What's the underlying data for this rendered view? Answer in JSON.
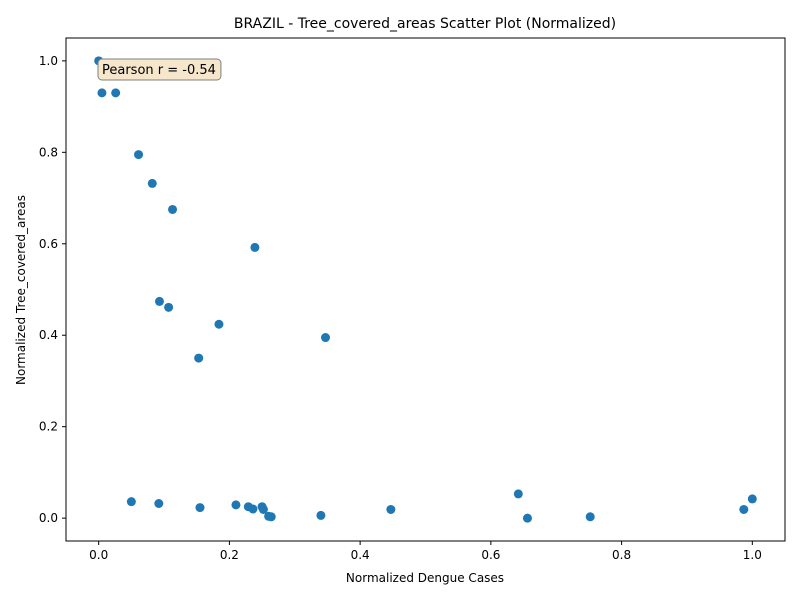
{
  "chart_data": {
    "type": "scatter",
    "title": "BRAZIL - Tree_covered_areas Scatter Plot (Normalized)",
    "xlabel": "Normalized Dengue Cases",
    "ylabel": "Normalized Tree_covered_areas",
    "xlim": [
      -0.05,
      1.05
    ],
    "ylim": [
      -0.05,
      1.05
    ],
    "x_ticks": [
      "0.0",
      "0.2",
      "0.4",
      "0.6",
      "0.8",
      "1.0"
    ],
    "y_ticks": [
      "0.0",
      "0.2",
      "0.4",
      "0.6",
      "0.8",
      "1.0"
    ],
    "grid": false,
    "marker_color": "#1f77b4",
    "annotation": "Pearson r = -0.54",
    "points": [
      {
        "x": 0.0,
        "y": 1.0
      },
      {
        "x": 0.005,
        "y": 0.93
      },
      {
        "x": 0.026,
        "y": 0.93
      },
      {
        "x": 0.061,
        "y": 0.795
      },
      {
        "x": 0.082,
        "y": 0.732
      },
      {
        "x": 0.113,
        "y": 0.675
      },
      {
        "x": 0.239,
        "y": 0.592
      },
      {
        "x": 0.093,
        "y": 0.474
      },
      {
        "x": 0.107,
        "y": 0.461
      },
      {
        "x": 0.184,
        "y": 0.424
      },
      {
        "x": 0.347,
        "y": 0.395
      },
      {
        "x": 0.153,
        "y": 0.35
      },
      {
        "x": 0.05,
        "y": 0.036
      },
      {
        "x": 0.092,
        "y": 0.032
      },
      {
        "x": 0.155,
        "y": 0.023
      },
      {
        "x": 0.21,
        "y": 0.029
      },
      {
        "x": 0.229,
        "y": 0.025
      },
      {
        "x": 0.236,
        "y": 0.02
      },
      {
        "x": 0.25,
        "y": 0.025
      },
      {
        "x": 0.252,
        "y": 0.019
      },
      {
        "x": 0.26,
        "y": 0.004
      },
      {
        "x": 0.264,
        "y": 0.003
      },
      {
        "x": 0.34,
        "y": 0.006
      },
      {
        "x": 0.447,
        "y": 0.019
      },
      {
        "x": 0.642,
        "y": 0.053
      },
      {
        "x": 0.656,
        "y": 0.0
      },
      {
        "x": 0.752,
        "y": 0.003
      },
      {
        "x": 0.987,
        "y": 0.019
      },
      {
        "x": 1.0,
        "y": 0.042
      }
    ]
  }
}
